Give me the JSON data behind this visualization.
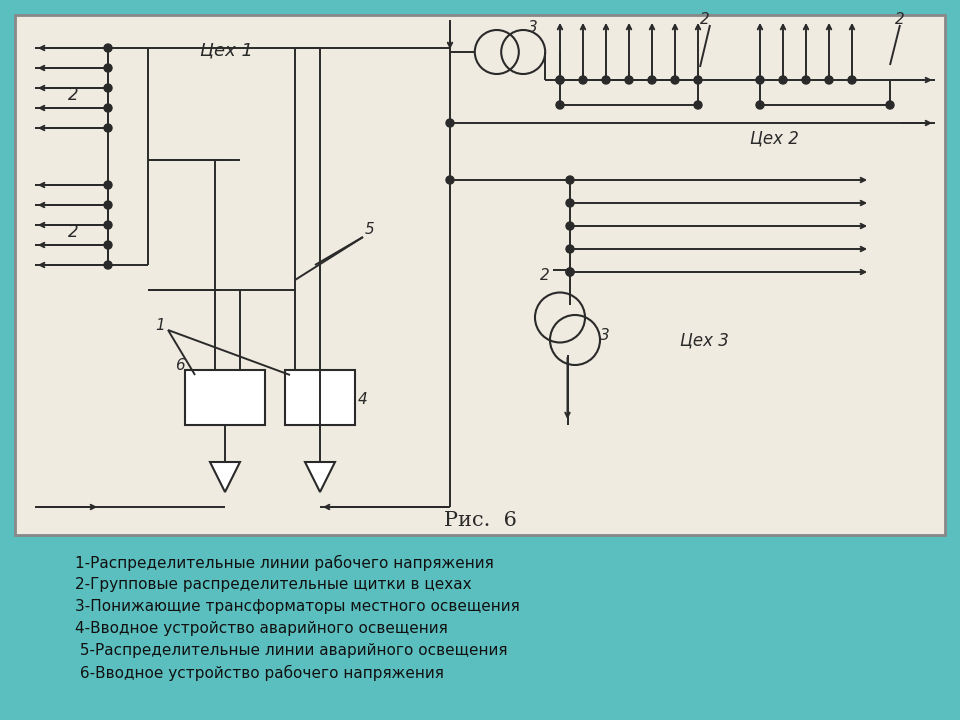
{
  "bg_color": "#5bbfbf",
  "diagram_bg": "#f0ebe0",
  "line_color": "#2a2a2a",
  "legend_lines": [
    "1-Распределительные линии рабочего напряжения",
    "2-Групповые распределительные щитки в цехах",
    "3-Понижающие трансформаторы местного освещения",
    "4-Вводное устройство аварийного освещения",
    " 5-Распределительные линии аварийного освещения",
    " 6-Вводное устройство рабочего напряжения"
  ]
}
